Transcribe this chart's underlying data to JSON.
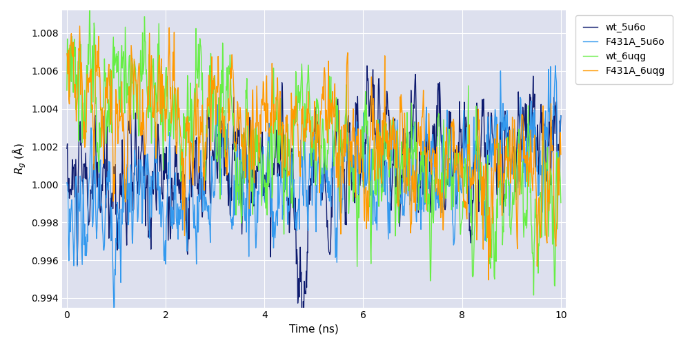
{
  "title": "",
  "xlabel": "Time (ns)",
  "ylabel": "$R_g$ (Å)",
  "xlim": [
    -0.1,
    10.1
  ],
  "ylim": [
    0.9935,
    1.0092
  ],
  "yticks": [
    0.994,
    0.996,
    0.998,
    1.0,
    1.002,
    1.004,
    1.006,
    1.008
  ],
  "xticks": [
    0,
    2,
    4,
    6,
    8,
    10
  ],
  "series": [
    {
      "label": "wt_5u6o",
      "color": "#0d1a6e",
      "lw": 1.0
    },
    {
      "label": "F431A_5u6o",
      "color": "#3399ee",
      "lw": 1.0
    },
    {
      "label": "wt_6uqg",
      "color": "#66ee44",
      "lw": 1.0
    },
    {
      "label": "F431A_6uqg",
      "color": "#ff9900",
      "lw": 1.0
    }
  ],
  "bg_color": "#e8e8f0",
  "plot_bg_color": "#dde0ee",
  "seed": 42,
  "n_points": 1000,
  "legend_fontsize": 10,
  "axis_fontsize": 11
}
